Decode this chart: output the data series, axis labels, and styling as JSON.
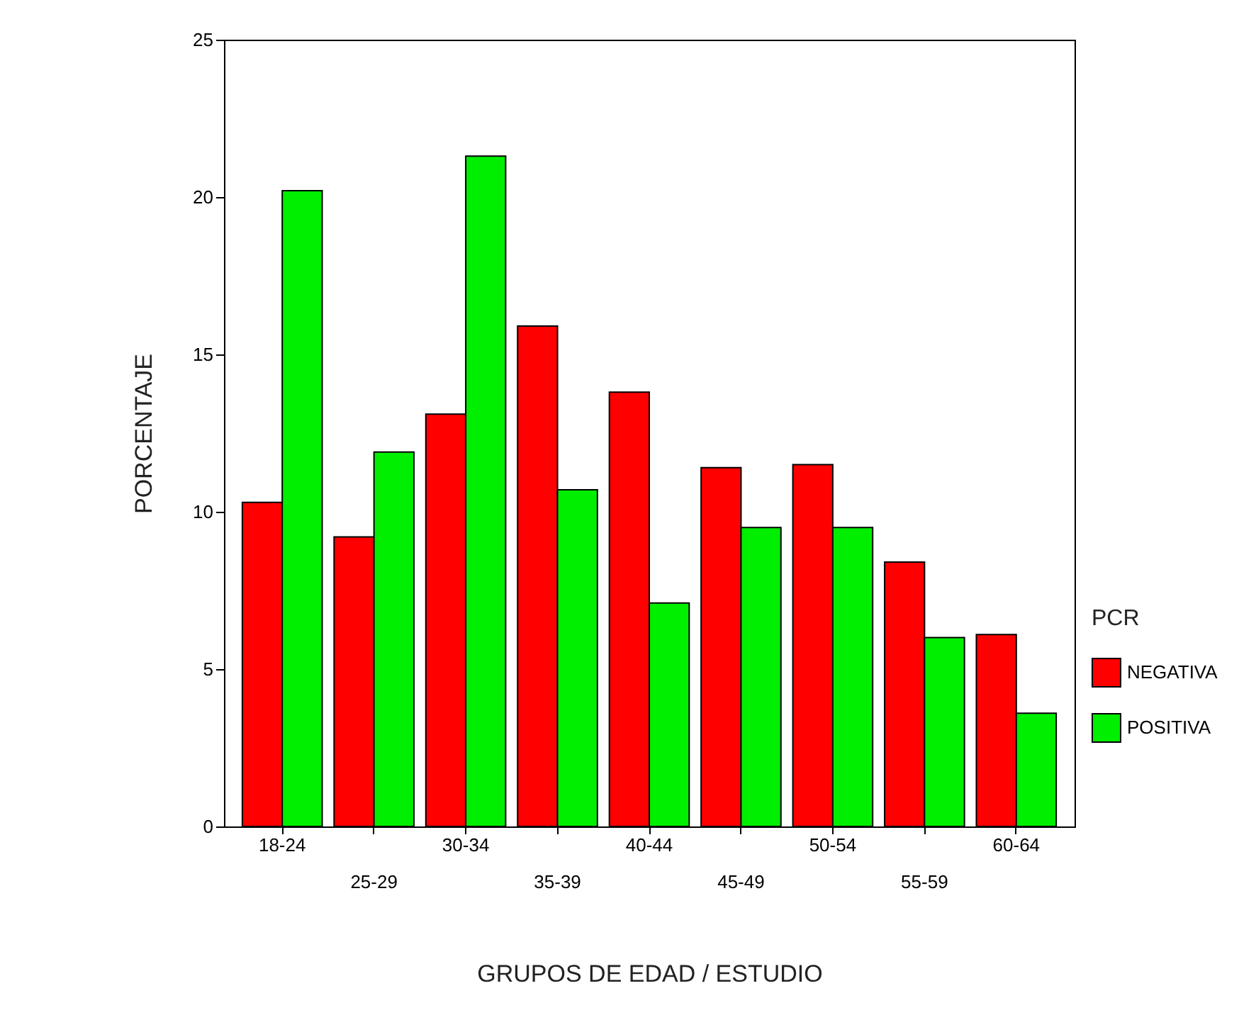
{
  "chart_data": {
    "type": "bar",
    "xlabel": "GRUPOS DE EDAD / ESTUDIO",
    "ylabel": "PORCENTAJE",
    "legend_title": "PCR",
    "categories": [
      "18-24",
      "25-29",
      "30-34",
      "35-39",
      "40-44",
      "45-49",
      "50-54",
      "55-59",
      "60-64"
    ],
    "series": [
      {
        "name": "NEGATIVA",
        "color": "#ff0000",
        "values": [
          10.3,
          9.2,
          13.1,
          15.9,
          13.8,
          11.4,
          11.5,
          8.4,
          6.1
        ]
      },
      {
        "name": "POSITIVA",
        "color": "#00ee00",
        "values": [
          20.2,
          11.9,
          21.3,
          10.7,
          7.1,
          9.5,
          9.5,
          6.0,
          3.6
        ]
      }
    ],
    "ylim": [
      0,
      25
    ],
    "yticks": [
      0,
      5,
      10,
      15,
      20,
      25
    ],
    "grid": false,
    "legend": "right"
  }
}
